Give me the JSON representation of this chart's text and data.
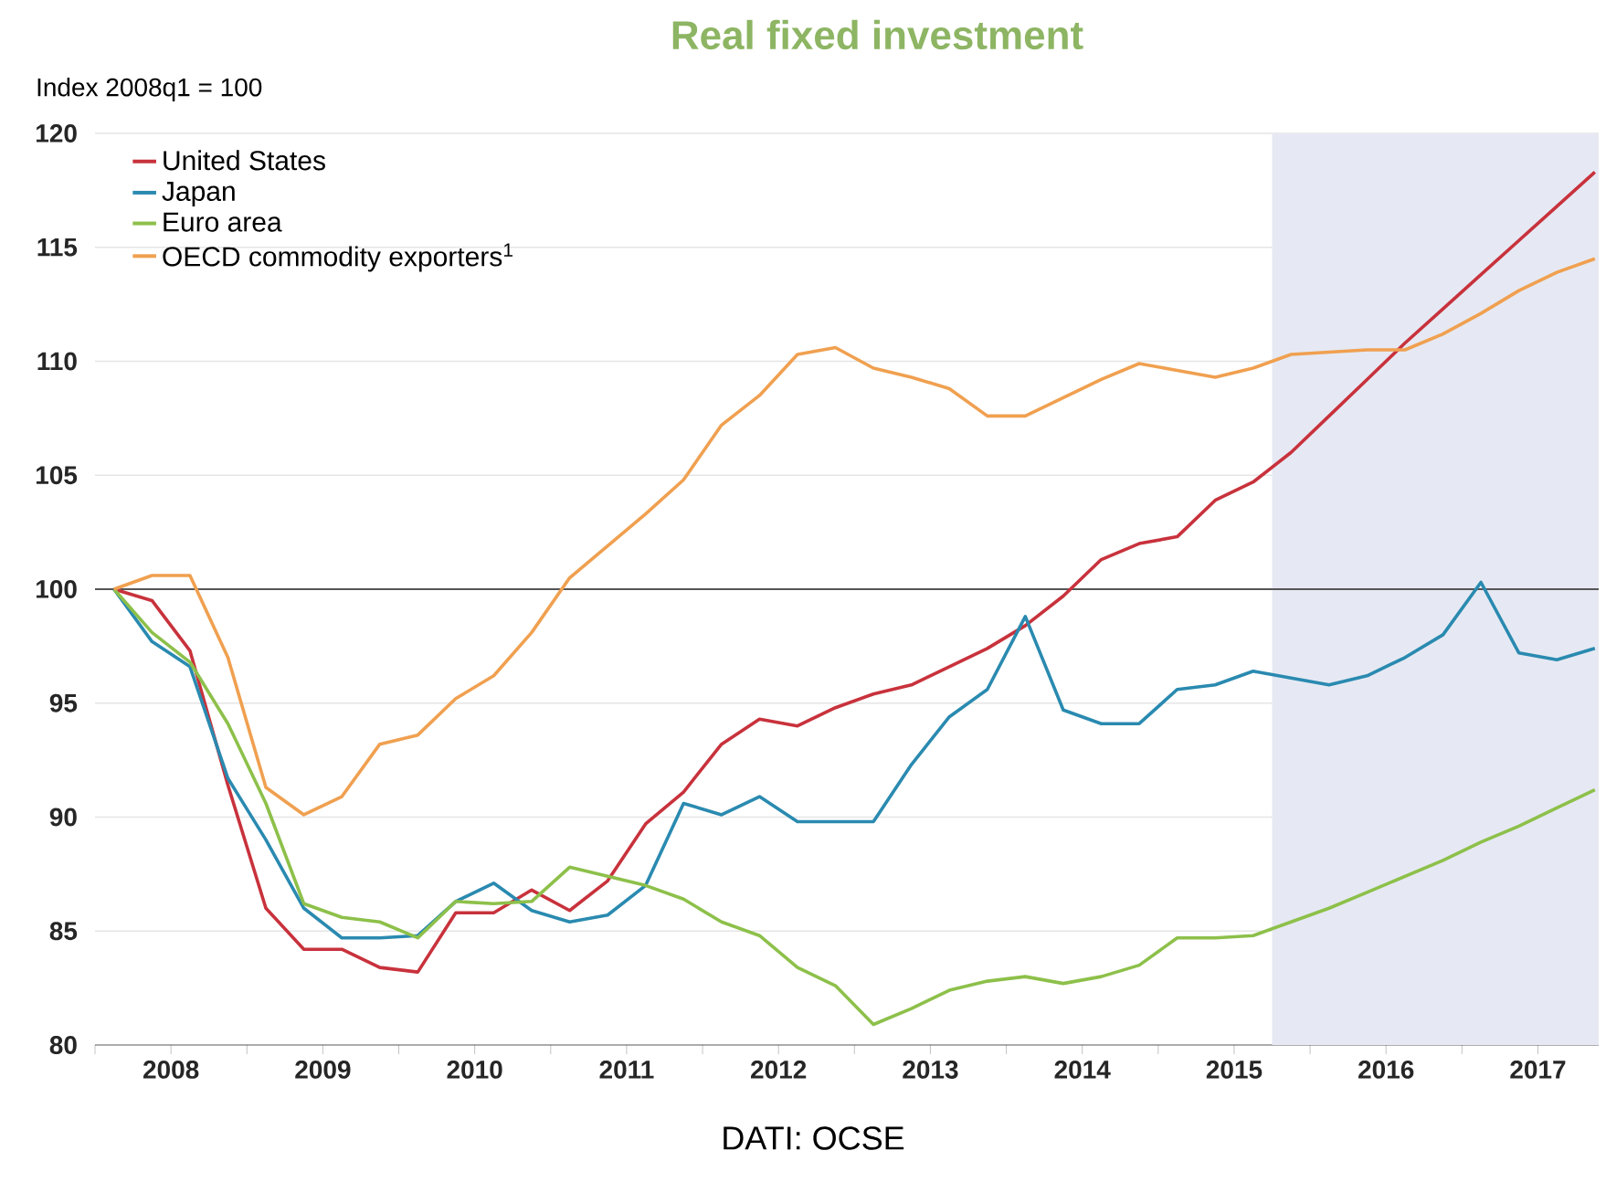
{
  "chart_data": {
    "type": "line",
    "title": "Real fixed investment",
    "ylabel": "Index 2008q1 = 100",
    "x": [
      2008.125,
      2008.375,
      2008.625,
      2008.875,
      2009.125,
      2009.375,
      2009.625,
      2009.875,
      2010.125,
      2010.375,
      2010.625,
      2010.875,
      2011.125,
      2011.375,
      2011.625,
      2011.875,
      2012.125,
      2012.375,
      2012.625,
      2012.875,
      2013.125,
      2013.375,
      2013.625,
      2013.875,
      2014.125,
      2014.375,
      2014.625,
      2014.875,
      2015.125,
      2015.375,
      2015.625,
      2015.875,
      2016.125,
      2016.375,
      2016.625,
      2016.875,
      2017.125,
      2017.375,
      2017.625,
      2017.875
    ],
    "series": [
      {
        "name": "United States",
        "color": "#c8323c",
        "values": [
          100,
          99.5,
          97.3,
          91.4,
          86.0,
          84.2,
          84.2,
          83.4,
          83.2,
          85.8,
          85.8,
          86.8,
          85.9,
          87.2,
          89.7,
          91.1,
          93.2,
          94.3,
          94.0,
          94.8,
          95.4,
          95.8,
          96.6,
          97.4,
          98.4,
          99.7,
          101.3,
          102.0,
          102.3,
          103.9,
          104.7,
          106.0,
          107.6,
          109.2,
          110.8,
          112.3,
          113.8,
          115.3,
          116.8,
          118.3
        ]
      },
      {
        "name": "Japan",
        "color": "#2a8ab0",
        "values": [
          100,
          97.7,
          96.6,
          91.7,
          89.0,
          86.0,
          84.7,
          84.7,
          84.8,
          86.3,
          87.1,
          85.9,
          85.4,
          85.7,
          87.0,
          90.6,
          90.1,
          90.9,
          89.8,
          89.8,
          89.8,
          92.3,
          94.4,
          95.6,
          98.8,
          94.7,
          94.1,
          94.1,
          95.6,
          95.8,
          96.4,
          96.1,
          95.8,
          96.2,
          97.0,
          98.0,
          100.3,
          97.2,
          96.9,
          97.4
        ]
      },
      {
        "name": "Euro area",
        "color": "#8dc04a",
        "values": [
          100,
          98.1,
          96.8,
          94.1,
          90.6,
          86.2,
          85.6,
          85.4,
          84.7,
          86.3,
          86.2,
          86.3,
          87.8,
          87.4,
          87.0,
          86.4,
          85.4,
          84.8,
          83.4,
          82.6,
          80.9,
          81.6,
          82.4,
          82.8,
          83.0,
          82.7,
          83.0,
          83.5,
          84.7,
          84.7,
          84.8,
          85.4,
          86.0,
          86.7,
          87.4,
          88.1,
          88.9,
          89.6,
          90.4,
          91.2
        ]
      },
      {
        "name": "OECD commodity exporters$^{1}$",
        "color": "#f0a050",
        "values": [
          100,
          100.6,
          100.6,
          97.0,
          91.3,
          90.1,
          90.9,
          93.2,
          93.6,
          95.2,
          96.2,
          98.1,
          100.5,
          101.9,
          103.3,
          104.8,
          107.2,
          108.5,
          110.3,
          110.6,
          109.7,
          109.3,
          108.8,
          107.6,
          107.6,
          108.4,
          109.2,
          109.9,
          109.6,
          109.3,
          109.7,
          110.3,
          110.4,
          110.5,
          110.5,
          111.2,
          112.1,
          113.1,
          113.9,
          114.5
        ]
      }
    ],
    "xlim": [
      2008,
      2017.9
    ],
    "xticks": [
      {
        "value": 2008,
        "label": null
      },
      {
        "value": 2008.5,
        "label": "2008"
      },
      {
        "value": 2009,
        "label": null
      },
      {
        "value": 2009.5,
        "label": "2009"
      },
      {
        "value": 2010,
        "label": null
      },
      {
        "value": 2010.5,
        "label": "2010"
      },
      {
        "value": 2011,
        "label": null
      },
      {
        "value": 2011.5,
        "label": "2011"
      },
      {
        "value": 2012,
        "label": null
      },
      {
        "value": 2012.5,
        "label": "2012"
      },
      {
        "value": 2013,
        "label": null
      },
      {
        "value": 2013.5,
        "label": "2013"
      },
      {
        "value": 2014,
        "label": null
      },
      {
        "value": 2014.5,
        "label": "2014"
      },
      {
        "value": 2015,
        "label": null
      },
      {
        "value": 2015.5,
        "label": "2015"
      },
      {
        "value": 2016,
        "label": null
      },
      {
        "value": 2016.5,
        "label": "2016"
      },
      {
        "value": 2017,
        "label": null
      },
      {
        "value": 2017.5,
        "label": "2017"
      }
    ],
    "ylim": [
      80,
      120
    ],
    "yticks": [
      80,
      85,
      90,
      95,
      100,
      105,
      110,
      115,
      120
    ],
    "grid": "y",
    "legend": "top left",
    "marker": "none",
    "line_style": "solid",
    "ref_lines": [
      {
        "axis": "y",
        "value": 100,
        "color": "#555555"
      }
    ],
    "bands": [
      {
        "axis": "x",
        "from": 2015.75,
        "to": 2017.9,
        "color": "#e6e9f3"
      }
    ],
    "annotations": [
      "DATI: OCSE"
    ]
  }
}
